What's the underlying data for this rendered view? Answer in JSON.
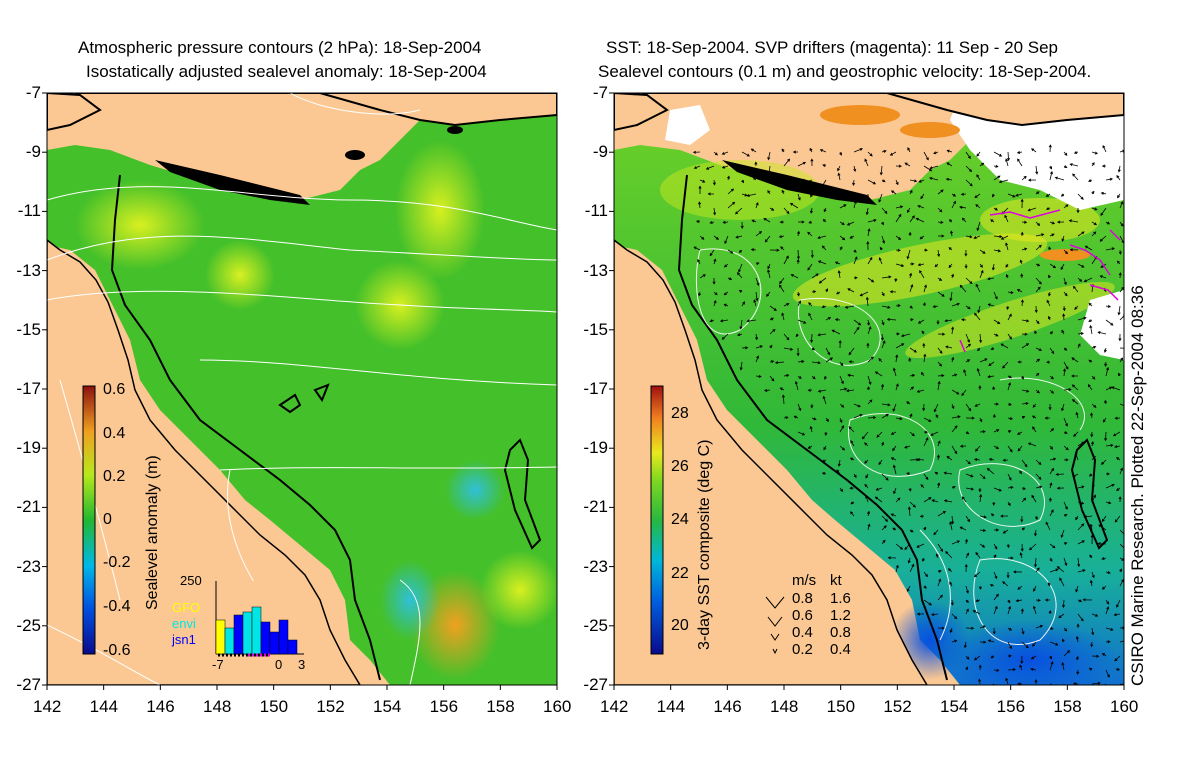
{
  "left_panel": {
    "title_line1": "Atmospheric pressure contours (2 hPa): 18-Sep-2004",
    "title_line2": "Isostatically adjusted sealevel anomaly: 18-Sep-2004",
    "colorbar": {
      "label": "Sealevel anomaly (m)",
      "ticks": [
        "0.6",
        "0.4",
        "0.2",
        "0",
        "-0.2",
        "-0.4",
        "-0.6"
      ]
    },
    "inset": {
      "ymax": "250",
      "xticks": [
        "-7",
        "0",
        "3"
      ],
      "legend": [
        {
          "name": "GFO",
          "color": "#ffff00"
        },
        {
          "name": "envi",
          "color": "#00e5e5"
        },
        {
          "name": "jsn1",
          "color": "#0000ff"
        }
      ]
    }
  },
  "right_panel": {
    "title_line1": "SST: 18-Sep-2004. SVP drifters (magenta): 11 Sep - 20 Sep",
    "title_line2": "Sealevel contours (0.1 m) and geostrophic velocity: 18-Sep-2004.",
    "colorbar": {
      "label": "3-day SST composite (deg C)",
      "ticks": [
        "28",
        "26",
        "24",
        "22",
        "20"
      ]
    },
    "velocity_key": {
      "header_ms": "m/s",
      "header_kt": "kt",
      "rows": [
        {
          "ms": "0.8",
          "kt": "1.6"
        },
        {
          "ms": "0.6",
          "kt": "1.2"
        },
        {
          "ms": "0.4",
          "kt": "0.8"
        },
        {
          "ms": "0.2",
          "kt": "0.4"
        }
      ]
    }
  },
  "lat_ticks": [
    "-7",
    "-9",
    "-11",
    "-13",
    "-15",
    "-17",
    "-19",
    "-21",
    "-23",
    "-25",
    "-27"
  ],
  "lon_ticks": [
    "142",
    "144",
    "146",
    "148",
    "150",
    "152",
    "154",
    "156",
    "158",
    "160"
  ],
  "side_credit": "CSIRO Marine Research. Plotted 22-Sep-2004 08:36",
  "colors": {
    "land": "#fbc893",
    "sea_base": "#44c02a",
    "contour": "#ffffff",
    "drifter": "#e000e0"
  }
}
